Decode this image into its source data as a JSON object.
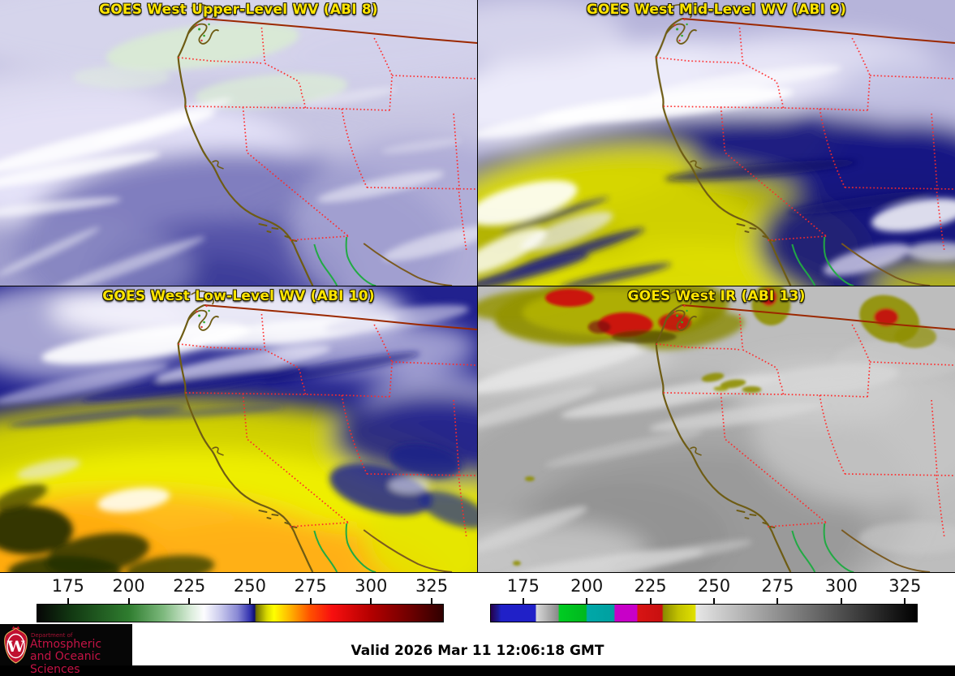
{
  "panels": [
    {
      "key": "abi8",
      "title": "GOES West Upper-Level WV (ABI 8)"
    },
    {
      "key": "abi9",
      "title": "GOES West Mid-Level WV (ABI 9)"
    },
    {
      "key": "abi10",
      "title": "GOES West Low-Level WV (ABI 10)"
    },
    {
      "key": "abi13",
      "title": "GOES West IR (ABI 13)"
    }
  ],
  "colorbars": {
    "wv": {
      "ticks": [
        "175",
        "200",
        "225",
        "250",
        "275",
        "300",
        "325"
      ],
      "range": [
        162,
        330
      ],
      "stops": [
        {
          "v": 162,
          "c": "#060606"
        },
        {
          "v": 176,
          "c": "#123812"
        },
        {
          "v": 200,
          "c": "#2f7d2f"
        },
        {
          "v": 214,
          "c": "#7cb87c"
        },
        {
          "v": 226,
          "c": "#ddeedd"
        },
        {
          "v": 231,
          "c": "#fdfdff"
        },
        {
          "v": 238,
          "c": "#c8c8ec"
        },
        {
          "v": 245,
          "c": "#8888d4"
        },
        {
          "v": 250,
          "c": "#3434b0"
        },
        {
          "v": 252,
          "c": "#0e0e6e"
        },
        {
          "v": 252.6,
          "c": "#6e6e00"
        },
        {
          "v": 257,
          "c": "#d8d800"
        },
        {
          "v": 260,
          "c": "#ffff00"
        },
        {
          "v": 267,
          "c": "#ffb000"
        },
        {
          "v": 275,
          "c": "#ff5000"
        },
        {
          "v": 284,
          "c": "#f80f0f"
        },
        {
          "v": 300,
          "c": "#b40000"
        },
        {
          "v": 316,
          "c": "#700000"
        },
        {
          "v": 330,
          "c": "#300000"
        }
      ]
    },
    "ir": {
      "ticks": [
        "175",
        "200",
        "225",
        "250",
        "275",
        "300",
        "325"
      ],
      "range": [
        162,
        330
      ],
      "stops": [
        {
          "v": 162,
          "c": "#26004d"
        },
        {
          "v": 165,
          "c": "#1c1c9a"
        },
        {
          "v": 166,
          "c": "#2020c8"
        },
        {
          "v": 179.5,
          "c": "#2020c8"
        },
        {
          "v": 180,
          "c": "#d8d8d8"
        },
        {
          "v": 188.5,
          "c": "#8a8a8a"
        },
        {
          "v": 189,
          "c": "#00cc22"
        },
        {
          "v": 199.5,
          "c": "#00b81e"
        },
        {
          "v": 200,
          "c": "#00a8a8"
        },
        {
          "v": 210.5,
          "c": "#00a0a0"
        },
        {
          "v": 211,
          "c": "#c800c8"
        },
        {
          "v": 219.5,
          "c": "#c800c8"
        },
        {
          "v": 220,
          "c": "#d81414"
        },
        {
          "v": 229.5,
          "c": "#c81010"
        },
        {
          "v": 230,
          "c": "#8a8a00"
        },
        {
          "v": 236,
          "c": "#c2c200"
        },
        {
          "v": 242.5,
          "c": "#e0e000"
        },
        {
          "v": 243,
          "c": "#e6e6e6"
        },
        {
          "v": 250,
          "c": "#d2d2d2"
        },
        {
          "v": 330,
          "c": "#000000"
        }
      ]
    }
  },
  "footer": {
    "valid": "Valid 2026 Mar 11 12:06:18 GMT"
  },
  "logo": {
    "w": "W",
    "dept": "Department of",
    "line1": "Atmospheric",
    "line2": "and Oceanic Sciences"
  },
  "colors": {
    "title_text": "#ffe500",
    "coastline": "#6e5c14",
    "state_border": "#ff2a2a",
    "canada_border": "#9b2800",
    "river": "#22aa44",
    "mexico_coast": "#7a5a20",
    "logo_text": "#c41345",
    "footer_bg": "#ffffff"
  }
}
